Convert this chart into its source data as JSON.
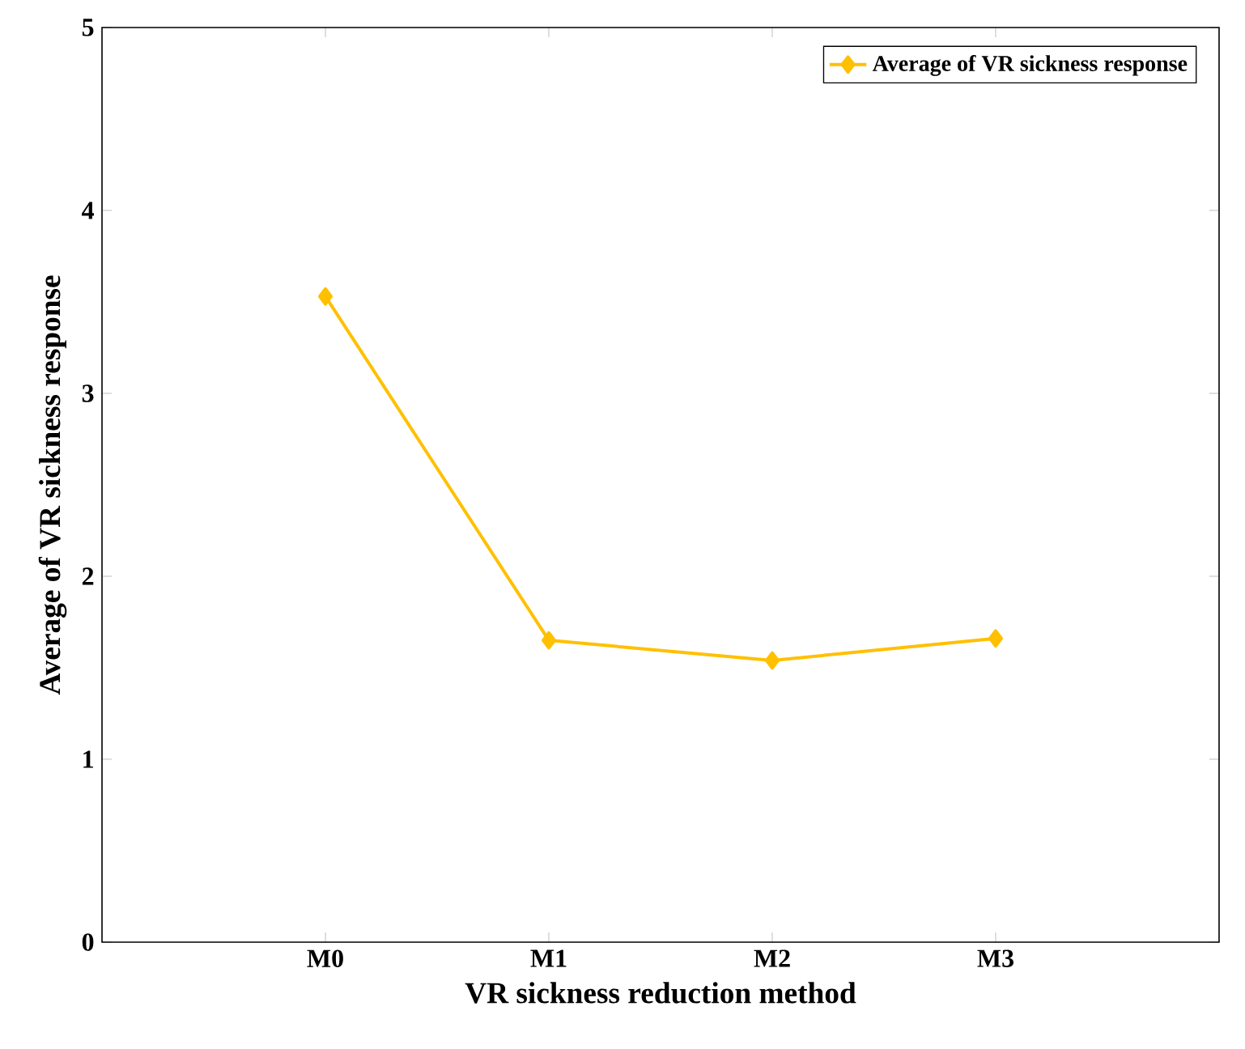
{
  "chart_data": {
    "type": "line",
    "xlabel": "VR sickness reduction method",
    "ylabel": "Average of VR sickness response",
    "categories": [
      "M0",
      "M1",
      "M2",
      "M3"
    ],
    "series": [
      {
        "name": "Average of VR sickness response",
        "color": "#ffc000",
        "values": [
          3.53,
          1.65,
          1.54,
          1.66
        ]
      }
    ],
    "ylim": [
      0,
      5
    ],
    "yticks": [
      0,
      1,
      2,
      3,
      4,
      5
    ],
    "legend": "top right",
    "marker": "diamond",
    "line_style": "solid",
    "grid": false
  }
}
